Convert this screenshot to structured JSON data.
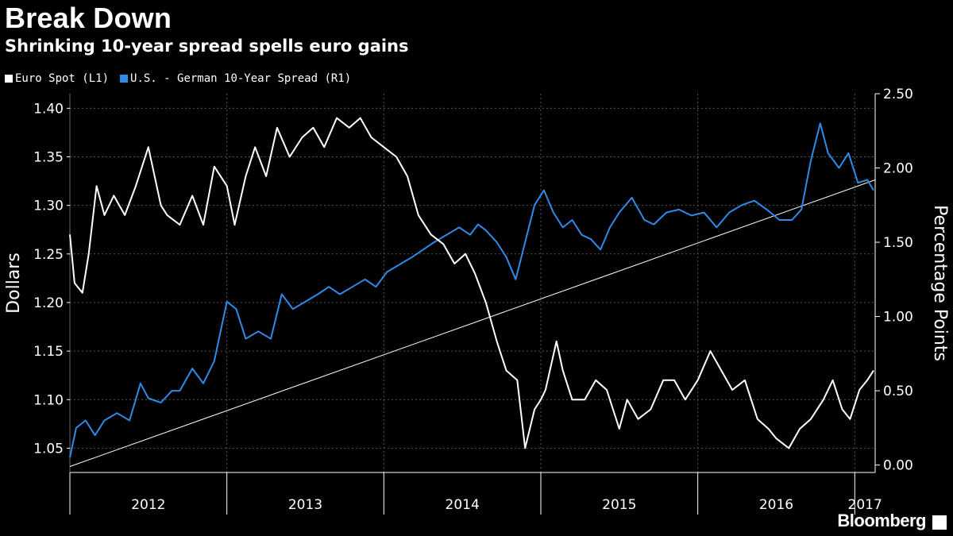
{
  "title": "Break Down",
  "subtitle": "Shrinking 10-year spread spells euro gains",
  "brand": "Bloomberg",
  "colors": {
    "background": "#000000",
    "euro": "#ffffff",
    "spread": "#2f8be6",
    "trend": "#ffffff",
    "grid": "#555555"
  },
  "chart_data": {
    "type": "line",
    "title": "Break Down",
    "subtitle": "Shrinking 10-year spread spells euro gains",
    "ylabel_left": "Dollars",
    "ylabel_right": "Percentage Points",
    "ylim_left": [
      1.025,
      1.415
    ],
    "ylim_right": [
      -0.05,
      2.5
    ],
    "yticks_left": [
      "1.05",
      "1.10",
      "1.15",
      "1.20",
      "1.25",
      "1.30",
      "1.35",
      "1.40"
    ],
    "yticks_right": [
      "0.00",
      "0.50",
      "1.00",
      "1.50",
      "2.00",
      "2.50"
    ],
    "x_labels": [
      "2012",
      "2013",
      "2014",
      "2015",
      "2016",
      "2017"
    ],
    "x_range": [
      2012.0,
      2017.13
    ],
    "grid": "dotted horizontal",
    "legend": "top-left",
    "series": [
      {
        "name": "Euro Spot  (L1)",
        "axis": "left",
        "x": [
          2012.0,
          2012.03,
          2012.08,
          2012.12,
          2012.17,
          2012.22,
          2012.28,
          2012.35,
          2012.42,
          2012.5,
          2012.58,
          2012.62,
          2012.7,
          2012.78,
          2012.85,
          2012.92,
          2013.0,
          2013.05,
          2013.12,
          2013.18,
          2013.25,
          2013.32,
          2013.4,
          2013.48,
          2013.55,
          2013.62,
          2013.7,
          2013.78,
          2013.85,
          2013.92,
          2014.0,
          2014.08,
          2014.15,
          2014.22,
          2014.3,
          2014.38,
          2014.45,
          2014.52,
          2014.58,
          2014.65,
          2014.72,
          2014.78,
          2014.85,
          2014.9,
          2014.96,
          2015.0,
          2015.03,
          2015.1,
          2015.14,
          2015.2,
          2015.28,
          2015.35,
          2015.42,
          2015.5,
          2015.55,
          2015.62,
          2015.7,
          2015.78,
          2015.85,
          2015.92,
          2016.0,
          2016.08,
          2016.15,
          2016.22,
          2016.3,
          2016.38,
          2016.45,
          2016.5,
          2016.58,
          2016.65,
          2016.72,
          2016.8,
          2016.86,
          2016.92,
          2016.97,
          2017.03,
          2017.08,
          2017.12
        ],
        "values": [
          1.27,
          1.22,
          1.21,
          1.25,
          1.32,
          1.29,
          1.31,
          1.29,
          1.32,
          1.36,
          1.3,
          1.29,
          1.28,
          1.31,
          1.28,
          1.34,
          1.32,
          1.28,
          1.33,
          1.36,
          1.33,
          1.38,
          1.35,
          1.37,
          1.38,
          1.36,
          1.39,
          1.38,
          1.39,
          1.37,
          1.36,
          1.35,
          1.33,
          1.29,
          1.27,
          1.26,
          1.24,
          1.25,
          1.23,
          1.2,
          1.16,
          1.13,
          1.12,
          1.05,
          1.09,
          1.1,
          1.11,
          1.16,
          1.13,
          1.1,
          1.1,
          1.12,
          1.11,
          1.07,
          1.1,
          1.08,
          1.09,
          1.12,
          1.12,
          1.1,
          1.12,
          1.15,
          1.13,
          1.11,
          1.12,
          1.08,
          1.07,
          1.06,
          1.05,
          1.07,
          1.08,
          1.1,
          1.12,
          1.09,
          1.08,
          1.11,
          1.12,
          1.13
        ]
      },
      {
        "name": "U.S. - German 10-Year Spread  (R1)",
        "axis": "right",
        "x": [
          2012.0,
          2012.04,
          2012.1,
          2012.16,
          2012.22,
          2012.3,
          2012.38,
          2012.45,
          2012.5,
          2012.58,
          2012.65,
          2012.7,
          2012.78,
          2012.85,
          2012.92,
          2013.0,
          2013.06,
          2013.12,
          2013.2,
          2013.28,
          2013.35,
          2013.42,
          2013.5,
          2013.58,
          2013.65,
          2013.72,
          2013.8,
          2013.88,
          2013.95,
          2014.02,
          2014.1,
          2014.18,
          2014.25,
          2014.32,
          2014.4,
          2014.48,
          2014.55,
          2014.6,
          2014.65,
          2014.72,
          2014.78,
          2014.84,
          2014.9,
          2014.96,
          2015.02,
          2015.08,
          2015.14,
          2015.2,
          2015.26,
          2015.32,
          2015.38,
          2015.44,
          2015.5,
          2015.58,
          2015.66,
          2015.72,
          2015.8,
          2015.88,
          2015.96,
          2016.04,
          2016.12,
          2016.2,
          2016.28,
          2016.36,
          2016.44,
          2016.52,
          2016.6,
          2016.66,
          2016.72,
          2016.78,
          2016.83,
          2016.9,
          2016.96,
          2017.02,
          2017.08,
          2017.12
        ],
        "values": [
          0.05,
          0.25,
          0.3,
          0.2,
          0.3,
          0.35,
          0.3,
          0.55,
          0.45,
          0.42,
          0.5,
          0.5,
          0.65,
          0.55,
          0.7,
          1.1,
          1.05,
          0.85,
          0.9,
          0.85,
          1.15,
          1.05,
          1.1,
          1.15,
          1.2,
          1.15,
          1.2,
          1.25,
          1.2,
          1.3,
          1.35,
          1.4,
          1.45,
          1.5,
          1.55,
          1.6,
          1.55,
          1.62,
          1.58,
          1.5,
          1.4,
          1.25,
          1.5,
          1.75,
          1.85,
          1.7,
          1.6,
          1.65,
          1.55,
          1.52,
          1.45,
          1.6,
          1.7,
          1.8,
          1.65,
          1.62,
          1.7,
          1.72,
          1.68,
          1.7,
          1.6,
          1.7,
          1.75,
          1.78,
          1.72,
          1.65,
          1.65,
          1.72,
          2.05,
          2.3,
          2.1,
          2.0,
          2.1,
          1.9,
          1.92,
          1.85
        ]
      }
    ],
    "trend_line": {
      "x": [
        2012.0,
        2017.13
      ],
      "values": [
        -0.01,
        1.92
      ],
      "axis": "right"
    }
  }
}
